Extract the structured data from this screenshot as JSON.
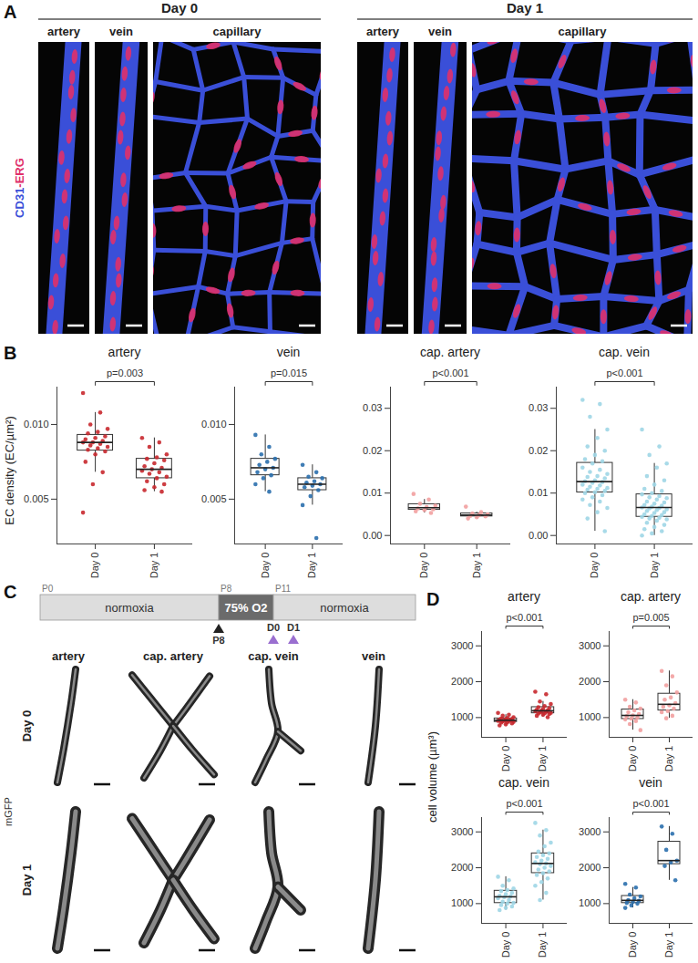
{
  "panels": [
    "A",
    "B",
    "C",
    "D"
  ],
  "panel_a": {
    "stain": [
      {
        "text": "CD31",
        "color": "#3a4fd8"
      },
      {
        "text": "-ERG",
        "color": "#e0306a"
      }
    ],
    "groups": [
      {
        "label": "Day 0",
        "columns": [
          "artery",
          "vein",
          "capillary"
        ]
      },
      {
        "label": "Day 1",
        "columns": [
          "artery",
          "vein",
          "capillary"
        ]
      }
    ]
  },
  "panel_c": {
    "timeline": {
      "segments": [
        "normoxia",
        "75% O2",
        "normoxia"
      ],
      "ticks": [
        "P0",
        "P8",
        "P11"
      ],
      "markers": [
        {
          "label": "P8",
          "color": "#222222"
        },
        {
          "label": "D0",
          "color": "#9a6fd0"
        },
        {
          "label": "D1",
          "color": "#9a6fd0"
        }
      ]
    },
    "columns": [
      "artery",
      "cap. artery",
      "cap. vein",
      "vein"
    ],
    "rows": [
      "Day 0",
      "Day 1"
    ],
    "channel": "mGFP"
  },
  "chart_data": [
    {
      "type": "box",
      "title": "artery",
      "y_label": "EC density (EC/µm²)",
      "categories": [
        "Day 0",
        "Day 1"
      ],
      "color": "#c8282d",
      "values": [
        [
          0.0121,
          0.0108,
          0.01,
          0.0097,
          0.0095,
          0.0094,
          0.0092,
          0.0091,
          0.009,
          0.0089,
          0.0088,
          0.0088,
          0.0087,
          0.0086,
          0.0085,
          0.0084,
          0.0083,
          0.0082,
          0.008,
          0.0075,
          0.0068,
          0.006,
          0.0041
        ],
        [
          0.0091,
          0.0088,
          0.0085,
          0.008,
          0.0078,
          0.0077,
          0.0076,
          0.0074,
          0.0072,
          0.0071,
          0.007,
          0.0069,
          0.0068,
          0.0067,
          0.0065,
          0.0064,
          0.0062,
          0.006,
          0.0058,
          0.0056,
          0.0055
        ]
      ],
      "ylim": [
        0.002,
        0.0125
      ],
      "yticks": [
        0.005,
        {
          "value": 0.01,
          "label": "0.010"
        }
      ],
      "annotation": "p=0.003"
    },
    {
      "type": "box",
      "title": "vein",
      "categories": [
        "Day 0",
        "Day 1"
      ],
      "color": "#2a6fad",
      "values": [
        [
          0.0093,
          0.0085,
          0.008,
          0.0077,
          0.0075,
          0.0073,
          0.0071,
          0.007,
          0.0068,
          0.0066,
          0.0064,
          0.006,
          0.0055
        ],
        [
          0.0073,
          0.0068,
          0.0065,
          0.0064,
          0.0062,
          0.0061,
          0.006,
          0.0059,
          0.0058,
          0.0056,
          0.0052,
          0.0046,
          0.0024
        ]
      ],
      "ylim": [
        0.002,
        0.0125
      ],
      "yticks": [
        0.005,
        {
          "value": 0.01,
          "label": "0.010"
        }
      ],
      "annotation": "p=0.015"
    },
    {
      "type": "box",
      "title": "cap. artery",
      "categories": [
        "Day 0",
        "Day 1"
      ],
      "color": "#f2a0a0",
      "values": [
        [
          0.0098,
          0.0085,
          0.0075,
          0.007,
          0.0067,
          0.0064,
          0.0062,
          0.006,
          0.0057,
          0.0053
        ],
        [
          0.0068,
          0.0055,
          0.0052,
          0.005,
          0.0048,
          0.0046,
          0.0045,
          0.0043,
          0.004
        ]
      ],
      "ylim": [
        -0.002,
        0.035
      ],
      "yticks": [
        {
          "value": 0,
          "label": "0.00"
        },
        0.01,
        0.02,
        0.03
      ],
      "annotation": "p<0.001"
    },
    {
      "type": "box",
      "title": "cap. vein",
      "categories": [
        "Day 0",
        "Day 1"
      ],
      "color": "#9fd6e6",
      "values": [
        [
          0.032,
          0.031,
          0.028,
          0.025,
          0.023,
          0.021,
          0.02,
          0.019,
          0.018,
          0.0175,
          0.017,
          0.016,
          0.0155,
          0.015,
          0.0145,
          0.014,
          0.0138,
          0.0135,
          0.013,
          0.0128,
          0.0126,
          0.0124,
          0.012,
          0.0118,
          0.0115,
          0.0112,
          0.011,
          0.0108,
          0.0105,
          0.0102,
          0.01,
          0.0095,
          0.009,
          0.0085,
          0.008,
          0.0072,
          0.0065,
          0.0055,
          0.004,
          0.001
        ],
        [
          0.025,
          0.021,
          0.019,
          0.017,
          0.016,
          0.014,
          0.013,
          0.012,
          0.011,
          0.0105,
          0.01,
          0.0097,
          0.0093,
          0.009,
          0.0088,
          0.0085,
          0.008,
          0.0078,
          0.0075,
          0.0072,
          0.007,
          0.0068,
          0.0066,
          0.0065,
          0.0064,
          0.0062,
          0.006,
          0.0058,
          0.0055,
          0.0053,
          0.005,
          0.0048,
          0.0046,
          0.0044,
          0.0042,
          0.004,
          0.0038,
          0.0035,
          0.003,
          0.0025,
          0.002,
          0.0015,
          0.001,
          0.0005,
          0
        ]
      ],
      "ylim": [
        -0.002,
        0.035
      ],
      "yticks": [
        {
          "value": 0,
          "label": "0.00"
        },
        0.01,
        0.02,
        0.03
      ],
      "annotation": "p<0.001"
    },
    {
      "type": "box",
      "title": "artery",
      "y_label": "cell volume (µm³)",
      "categories": [
        "Day 0",
        "Day 1"
      ],
      "color": "#c8282d",
      "values": [
        [
          1130,
          1080,
          1050,
          1010,
          990,
          970,
          960,
          950,
          940,
          930,
          920,
          910,
          900,
          890,
          880,
          870,
          860,
          840,
          810,
          780
        ],
        [
          1720,
          1650,
          1450,
          1380,
          1320,
          1290,
          1260,
          1240,
          1220,
          1200,
          1190,
          1180,
          1170,
          1150,
          1130,
          1120,
          1110,
          1100,
          1080,
          1050,
          1010
        ]
      ],
      "ylim": [
        450,
        3400
      ],
      "yticks": [
        1000,
        2000,
        3000
      ],
      "annotation": "p<0.001"
    },
    {
      "type": "box",
      "title": "cap. artery",
      "categories": [
        "Day 0",
        "Day 1"
      ],
      "color": "#f2a0a0",
      "values": [
        [
          1500,
          1420,
          1300,
          1250,
          1200,
          1150,
          1100,
          1060,
          1040,
          1000,
          970,
          950,
          900,
          820,
          650
        ],
        [
          2300,
          2150,
          1900,
          1700,
          1560,
          1500,
          1400,
          1340,
          1300,
          1250,
          1180,
          1150,
          1050,
          980
        ]
      ],
      "ylim": [
        450,
        3400
      ],
      "yticks": [
        1000,
        2000,
        3000
      ],
      "annotation": "p=0.005"
    },
    {
      "type": "box",
      "title": "cap. vein",
      "categories": [
        "Day 0",
        "Day 1"
      ],
      "color": "#9fd6e6",
      "values": [
        [
          1750,
          1650,
          1500,
          1420,
          1380,
          1350,
          1300,
          1260,
          1220,
          1200,
          1180,
          1150,
          1100,
          1050,
          1020,
          1000,
          960,
          920,
          880,
          820
        ],
        [
          3250,
          3050,
          2900,
          2700,
          2600,
          2450,
          2400,
          2350,
          2300,
          2250,
          2200,
          2150,
          2120,
          2100,
          2050,
          2000,
          1950,
          1900,
          1850,
          1800,
          1700,
          1600,
          1500,
          1300,
          1100
        ]
      ],
      "ylim": [
        450,
        3400
      ],
      "yticks": [
        1000,
        2000,
        3000
      ],
      "annotation": "p<0.001"
    },
    {
      "type": "box",
      "title": "vein",
      "categories": [
        "Day 0",
        "Day 1"
      ],
      "color": "#2a6fad",
      "values": [
        [
          1550,
          1450,
          1250,
          1200,
          1150,
          1100,
          1080,
          1050,
          1020,
          1000,
          950,
          880
        ],
        [
          3150,
          2950,
          2500,
          2200,
          2150,
          2050,
          1650
        ]
      ],
      "ylim": [
        450,
        3400
      ],
      "yticks": [
        1000,
        2000,
        3000
      ],
      "annotation": "p<0.001"
    }
  ]
}
